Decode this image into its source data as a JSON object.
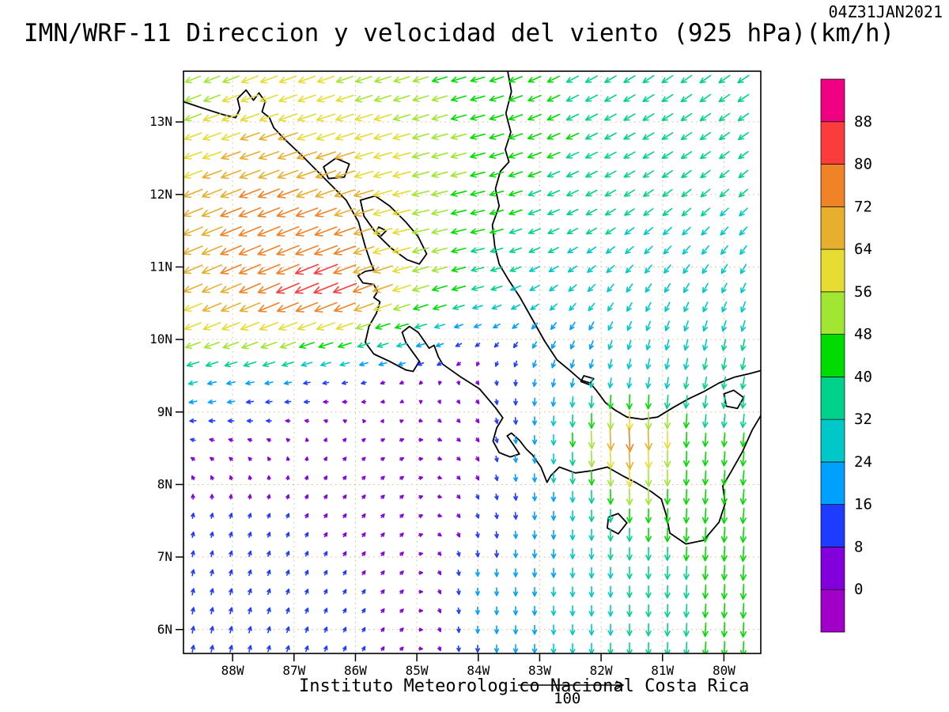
{
  "header": {
    "title": "IMN/WRF-11 Direccion y velocidad del viento (925 hPa)(km/h)",
    "datetime": "04Z31JAN2021"
  },
  "footer": {
    "caption": "Instituto Meteorologico Nacional Costa Rica",
    "reference_value": "100"
  },
  "chart_data": {
    "type": "vector-field-map",
    "title": "IMN/WRF-11 Direccion y velocidad del viento (925 hPa)(km/h)",
    "datetime": "04Z31JAN2021",
    "units": "km/h",
    "level": "925 hPa",
    "lon_range": [
      -88.8,
      -79.4
    ],
    "lat_range": [
      5.67,
      13.7
    ],
    "lat_ticks": [
      {
        "label": "13N",
        "value": 13
      },
      {
        "label": "12N",
        "value": 12
      },
      {
        "label": "11N",
        "value": 11
      },
      {
        "label": "10N",
        "value": 10
      },
      {
        "label": "9N",
        "value": 9
      },
      {
        "label": "8N",
        "value": 8
      },
      {
        "label": "7N",
        "value": 7
      },
      {
        "label": "6N",
        "value": 6
      }
    ],
    "lon_ticks": [
      {
        "label": "88W",
        "value": -88
      },
      {
        "label": "87W",
        "value": -87
      },
      {
        "label": "86W",
        "value": -86
      },
      {
        "label": "85W",
        "value": -85
      },
      {
        "label": "84W",
        "value": -84
      },
      {
        "label": "83W",
        "value": -83
      },
      {
        "label": "82W",
        "value": -82
      },
      {
        "label": "81W",
        "value": -81
      },
      {
        "label": "80W",
        "value": -80
      }
    ],
    "colorbar": {
      "orientation": "vertical-right",
      "unit": "km/h",
      "levels": [
        0,
        8,
        16,
        24,
        32,
        40,
        48,
        56,
        64,
        72,
        80,
        88
      ],
      "colors": [
        "#A000C8",
        "#8200DC",
        "#1E3CFF",
        "#00A0FF",
        "#00C8C8",
        "#00D28C",
        "#00DC00",
        "#A0E632",
        "#E6DC32",
        "#E6AF2D",
        "#F08228",
        "#FA3C3C",
        "#F00082"
      ]
    },
    "wind_grid": {
      "units": "km/h",
      "lons": [
        -88.8,
        -87.6,
        -86.4,
        -85.2,
        -84.0,
        -82.8,
        -81.6,
        -80.4,
        -79.4
      ],
      "lats": [
        13.7,
        12.6,
        11.6,
        10.6,
        10.0,
        9.4,
        8.6,
        7.6,
        6.6,
        5.67
      ],
      "u": [
        [
          -45,
          -52,
          -52,
          -48,
          -42,
          -36,
          -33,
          -31,
          -34
        ],
        [
          -55,
          -64,
          -62,
          -55,
          -45,
          -38,
          -33,
          -29,
          -27
        ],
        [
          -62,
          -74,
          -70,
          -55,
          -42,
          -33,
          -27,
          -23,
          -21
        ],
        [
          -58,
          -70,
          -82,
          -56,
          -33,
          -21,
          -15,
          -13,
          -11
        ],
        [
          -48,
          -55,
          -46,
          -30,
          -9,
          -10,
          -8,
          -8,
          -7
        ],
        [
          -24,
          -20,
          -12,
          -4,
          3,
          -4,
          -4,
          -6,
          -6
        ],
        [
          -9,
          -5,
          2,
          5,
          4,
          0,
          4,
          -2,
          -4
        ],
        [
          2,
          3,
          4,
          5,
          3,
          0,
          0,
          -2,
          -4
        ],
        [
          3,
          4,
          4,
          5,
          0,
          0,
          0,
          -2,
          -2
        ],
        [
          3,
          4,
          4,
          4,
          0,
          0,
          0,
          -2,
          -2
        ]
      ],
      "v": [
        [
          -18,
          -20,
          -18,
          -15,
          -12,
          -18,
          -20,
          -22,
          -22
        ],
        [
          -20,
          -22,
          -20,
          -15,
          -12,
          -16,
          -18,
          -20,
          -20
        ],
        [
          -25,
          -30,
          -25,
          -12,
          -10,
          -14,
          -18,
          -22,
          -22
        ],
        [
          -24,
          -30,
          -33,
          -18,
          -8,
          -16,
          -22,
          -26,
          -28
        ],
        [
          -18,
          -20,
          -15,
          -8,
          -6,
          -18,
          -24,
          -30,
          -32
        ],
        [
          -6,
          -4,
          -2,
          -2,
          -4,
          -20,
          -28,
          -34,
          -36
        ],
        [
          2,
          2,
          3,
          2,
          -6,
          -28,
          -80,
          -40,
          -42
        ],
        [
          10,
          8,
          6,
          5,
          -8,
          -22,
          -42,
          -45,
          -48
        ],
        [
          14,
          12,
          8,
          5,
          -18,
          -24,
          -32,
          -40,
          -48
        ],
        [
          16,
          14,
          10,
          4,
          -16,
          -26,
          -34,
          -40,
          -46
        ]
      ]
    }
  },
  "geo": {
    "coastlines": [
      [
        [
          -88.8,
          13.28
        ],
        [
          -88.45,
          13.18
        ],
        [
          -88.15,
          13.1
        ],
        [
          -87.95,
          13.06
        ],
        [
          -87.88,
          13.18
        ],
        [
          -87.92,
          13.32
        ],
        [
          -87.78,
          13.44
        ],
        [
          -87.66,
          13.3
        ],
        [
          -87.57,
          13.4
        ],
        [
          -87.47,
          13.28
        ],
        [
          -87.52,
          13.14
        ],
        [
          -87.4,
          13.06
        ],
        [
          -87.33,
          12.92
        ],
        [
          -87.15,
          12.76
        ],
        [
          -86.85,
          12.52
        ],
        [
          -86.5,
          12.22
        ],
        [
          -86.15,
          11.92
        ],
        [
          -85.95,
          11.62
        ],
        [
          -85.84,
          11.28
        ],
        [
          -85.76,
          11.08
        ],
        [
          -85.7,
          10.96
        ],
        [
          -85.84,
          10.94
        ],
        [
          -85.96,
          10.88
        ],
        [
          -85.88,
          10.78
        ],
        [
          -85.7,
          10.76
        ],
        [
          -85.64,
          10.66
        ],
        [
          -85.7,
          10.58
        ],
        [
          -85.6,
          10.52
        ],
        [
          -85.66,
          10.36
        ],
        [
          -85.78,
          10.18
        ],
        [
          -85.84,
          9.96
        ],
        [
          -85.7,
          9.8
        ],
        [
          -85.45,
          9.7
        ],
        [
          -85.18,
          9.58
        ],
        [
          -85.06,
          9.56
        ],
        [
          -84.96,
          9.7
        ],
        [
          -85.08,
          9.84
        ],
        [
          -85.18,
          9.96
        ],
        [
          -85.24,
          10.1
        ],
        [
          -85.12,
          10.18
        ],
        [
          -84.98,
          10.1
        ],
        [
          -84.88,
          9.98
        ],
        [
          -84.8,
          9.88
        ],
        [
          -84.72,
          9.92
        ],
        [
          -84.65,
          9.76
        ],
        [
          -84.58,
          9.66
        ],
        [
          -84.28,
          9.48
        ],
        [
          -83.98,
          9.32
        ],
        [
          -83.72,
          9.06
        ],
        [
          -83.6,
          8.92
        ],
        [
          -83.7,
          8.78
        ],
        [
          -83.76,
          8.6
        ],
        [
          -83.66,
          8.44
        ],
        [
          -83.48,
          8.38
        ],
        [
          -83.33,
          8.42
        ],
        [
          -83.43,
          8.55
        ],
        [
          -83.53,
          8.67
        ],
        [
          -83.46,
          8.71
        ],
        [
          -83.33,
          8.61
        ],
        [
          -83.22,
          8.49
        ],
        [
          -83.12,
          8.41
        ],
        [
          -82.98,
          8.24
        ],
        [
          -82.88,
          8.03
        ],
        [
          -82.82,
          8.12
        ],
        [
          -82.68,
          8.24
        ],
        [
          -82.42,
          8.16
        ],
        [
          -82.15,
          8.19
        ],
        [
          -81.9,
          8.24
        ],
        [
          -81.65,
          8.12
        ],
        [
          -81.42,
          8.02
        ],
        [
          -81.18,
          7.9
        ],
        [
          -81.02,
          7.8
        ],
        [
          -80.94,
          7.58
        ],
        [
          -80.88,
          7.33
        ],
        [
          -80.62,
          7.18
        ],
        [
          -80.33,
          7.23
        ],
        [
          -80.08,
          7.48
        ],
        [
          -79.98,
          7.74
        ],
        [
          -80.02,
          7.98
        ],
        [
          -79.88,
          8.18
        ],
        [
          -79.7,
          8.45
        ],
        [
          -79.54,
          8.75
        ],
        [
          -79.4,
          8.95
        ]
      ],
      [
        [
          -83.52,
          13.7
        ],
        [
          -83.46,
          13.42
        ],
        [
          -83.55,
          13.12
        ],
        [
          -83.47,
          12.86
        ],
        [
          -83.56,
          12.62
        ],
        [
          -83.5,
          12.45
        ],
        [
          -83.64,
          12.32
        ],
        [
          -83.72,
          12.08
        ],
        [
          -83.66,
          11.84
        ],
        [
          -83.77,
          11.58
        ],
        [
          -83.73,
          11.28
        ],
        [
          -83.66,
          11.04
        ],
        [
          -83.52,
          10.84
        ],
        [
          -83.32,
          10.58
        ],
        [
          -83.08,
          10.22
        ],
        [
          -82.92,
          9.98
        ],
        [
          -82.72,
          9.72
        ],
        [
          -82.52,
          9.58
        ],
        [
          -82.33,
          9.44
        ],
        [
          -82.18,
          9.4
        ],
        [
          -82.08,
          9.3
        ],
        [
          -81.93,
          9.13
        ],
        [
          -81.78,
          9.03
        ],
        [
          -81.58,
          8.93
        ],
        [
          -81.33,
          8.9
        ],
        [
          -81.08,
          8.93
        ],
        [
          -80.83,
          9.06
        ],
        [
          -80.58,
          9.18
        ],
        [
          -80.33,
          9.28
        ],
        [
          -80.08,
          9.4
        ],
        [
          -79.83,
          9.48
        ],
        [
          -79.58,
          9.53
        ],
        [
          -79.4,
          9.57
        ]
      ],
      [
        [
          -85.92,
          11.92
        ],
        [
          -85.68,
          11.98
        ],
        [
          -85.44,
          11.84
        ],
        [
          -85.18,
          11.62
        ],
        [
          -84.98,
          11.42
        ],
        [
          -84.84,
          11.18
        ],
        [
          -84.96,
          11.04
        ],
        [
          -85.16,
          11.1
        ],
        [
          -85.42,
          11.26
        ],
        [
          -85.66,
          11.46
        ],
        [
          -85.86,
          11.7
        ],
        [
          -85.92,
          11.92
        ]
      ],
      [
        [
          -85.62,
          11.55
        ],
        [
          -85.5,
          11.5
        ],
        [
          -85.58,
          11.43
        ],
        [
          -85.66,
          11.49
        ],
        [
          -85.62,
          11.55
        ]
      ],
      [
        [
          -86.52,
          12.38
        ],
        [
          -86.32,
          12.5
        ],
        [
          -86.1,
          12.42
        ],
        [
          -86.18,
          12.24
        ],
        [
          -86.44,
          12.22
        ],
        [
          -86.52,
          12.38
        ]
      ],
      [
        [
          -81.88,
          7.55
        ],
        [
          -81.72,
          7.6
        ],
        [
          -81.58,
          7.47
        ],
        [
          -81.72,
          7.32
        ],
        [
          -81.9,
          7.4
        ],
        [
          -81.88,
          7.55
        ]
      ],
      [
        [
          -82.28,
          9.5
        ],
        [
          -82.12,
          9.46
        ],
        [
          -82.2,
          9.38
        ],
        [
          -82.33,
          9.42
        ],
        [
          -82.28,
          9.5
        ]
      ],
      [
        [
          -80.0,
          9.25
        ],
        [
          -79.84,
          9.3
        ],
        [
          -79.68,
          9.2
        ],
        [
          -79.78,
          9.05
        ],
        [
          -79.96,
          9.08
        ],
        [
          -80.0,
          9.25
        ]
      ]
    ]
  }
}
